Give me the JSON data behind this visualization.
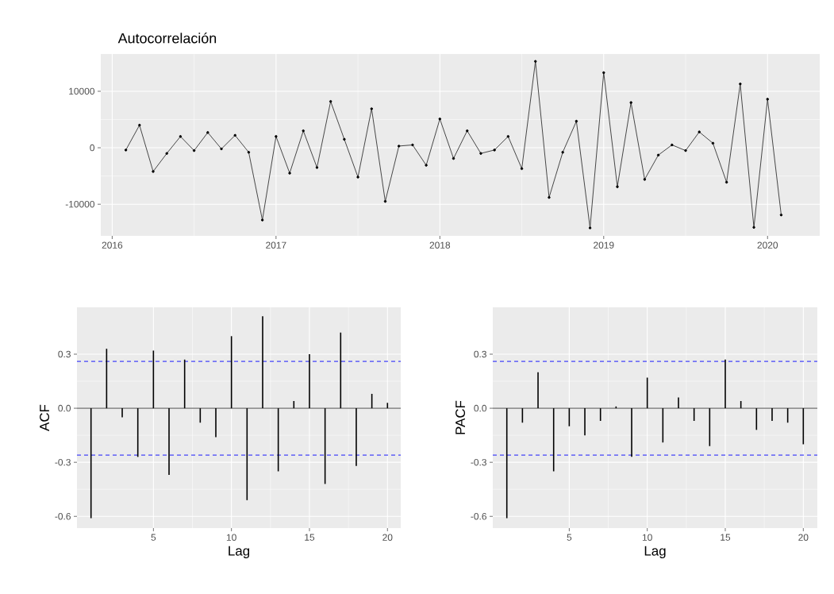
{
  "chart_data": [
    {
      "type": "line",
      "title": "Autocorrelación",
      "marker": "circle",
      "grid": true,
      "color": "#333333",
      "x": [
        "2016-02",
        "2016-03",
        "2016-04",
        "2016-05",
        "2016-06",
        "2016-07",
        "2016-08",
        "2016-09",
        "2016-10",
        "2016-11",
        "2016-12",
        "2017-01",
        "2017-02",
        "2017-03",
        "2017-04",
        "2017-05",
        "2017-06",
        "2017-07",
        "2017-08",
        "2017-09",
        "2017-10",
        "2017-11",
        "2017-12",
        "2018-01",
        "2018-02",
        "2018-03",
        "2018-04",
        "2018-05",
        "2018-06",
        "2018-07",
        "2018-08",
        "2018-09",
        "2018-10",
        "2018-11",
        "2018-12",
        "2019-01",
        "2019-02",
        "2019-03",
        "2019-04",
        "2019-05",
        "2019-06",
        "2019-07",
        "2019-08",
        "2019-09",
        "2019-10",
        "2019-11",
        "2019-12",
        "2020-01",
        "2020-02"
      ],
      "values": [
        -400,
        4000,
        -4200,
        -1000,
        2000,
        -500,
        2700,
        -200,
        2200,
        -800,
        -12800,
        2000,
        -4500,
        3000,
        -3500,
        8200,
        1500,
        -5200,
        6900,
        -9500,
        300,
        500,
        -3100,
        5100,
        -1900,
        3000,
        -1000,
        -400,
        2000,
        -3700,
        15300,
        -8800,
        -800,
        4700,
        -14200,
        13300,
        -6900,
        8000,
        -5600,
        -1300,
        500,
        -500,
        2800,
        800,
        -6100,
        11300,
        -14100,
        8600,
        -11900
      ],
      "xlim": [
        "2015-12-06",
        "2020-04-26"
      ],
      "ylim": [
        -15600,
        16600
      ],
      "xticks": [
        "2016",
        "2017",
        "2018",
        "2019",
        "2020"
      ],
      "yticks": [
        -10000,
        0,
        10000
      ]
    },
    {
      "type": "bar",
      "xlabel": "Lag",
      "ylabel": "ACF",
      "grid": true,
      "color": "#000000",
      "x": [
        1,
        2,
        3,
        4,
        5,
        6,
        7,
        8,
        9,
        10,
        11,
        12,
        13,
        14,
        15,
        16,
        17,
        18,
        19,
        20
      ],
      "values": [
        -0.61,
        0.33,
        -0.05,
        -0.27,
        0.32,
        -0.37,
        0.27,
        -0.08,
        -0.16,
        0.4,
        -0.51,
        0.51,
        -0.35,
        0.04,
        0.3,
        -0.42,
        0.42,
        -0.32,
        0.08,
        0.03
      ],
      "xlim": [
        0.1,
        20.85
      ],
      "ylim": [
        -0.665,
        0.56
      ],
      "xticks": [
        5,
        10,
        15,
        20
      ],
      "yticks": [
        -0.6,
        -0.3,
        {
          "value": 0,
          "label": "0.0"
        },
        0.3
      ],
      "ref_lines": [
        {
          "axis": "y",
          "value": 0.26,
          "color": "#0000ff",
          "line_style": "dashed"
        },
        {
          "axis": "y",
          "value": -0.26,
          "color": "#0000ff",
          "line_style": "dashed"
        },
        {
          "axis": "y",
          "value": 0,
          "color": "#333333",
          "line_style": "solid"
        }
      ]
    },
    {
      "type": "bar",
      "xlabel": "Lag",
      "ylabel": "PACF",
      "grid": true,
      "color": "#000000",
      "x": [
        1,
        2,
        3,
        4,
        5,
        6,
        7,
        8,
        9,
        10,
        11,
        12,
        13,
        14,
        15,
        16,
        17,
        18,
        19,
        20
      ],
      "values": [
        -0.61,
        -0.08,
        0.2,
        -0.35,
        -0.1,
        -0.15,
        -0.07,
        0.01,
        -0.27,
        0.17,
        -0.19,
        0.06,
        -0.07,
        -0.21,
        0.27,
        0.04,
        -0.12,
        -0.07,
        -0.08,
        -0.2
      ],
      "xlim": [
        0.1,
        20.9
      ],
      "ylim": [
        -0.665,
        0.56
      ],
      "xticks": [
        5,
        10,
        15,
        20
      ],
      "yticks": [
        -0.6,
        -0.3,
        {
          "value": 0,
          "label": "0.0"
        },
        0.3
      ],
      "ref_lines": [
        {
          "axis": "y",
          "value": 0.26,
          "color": "#0000ff",
          "line_style": "dashed"
        },
        {
          "axis": "y",
          "value": -0.26,
          "color": "#0000ff",
          "line_style": "dashed"
        },
        {
          "axis": "y",
          "value": 0,
          "color": "#333333",
          "line_style": "solid"
        }
      ]
    }
  ]
}
